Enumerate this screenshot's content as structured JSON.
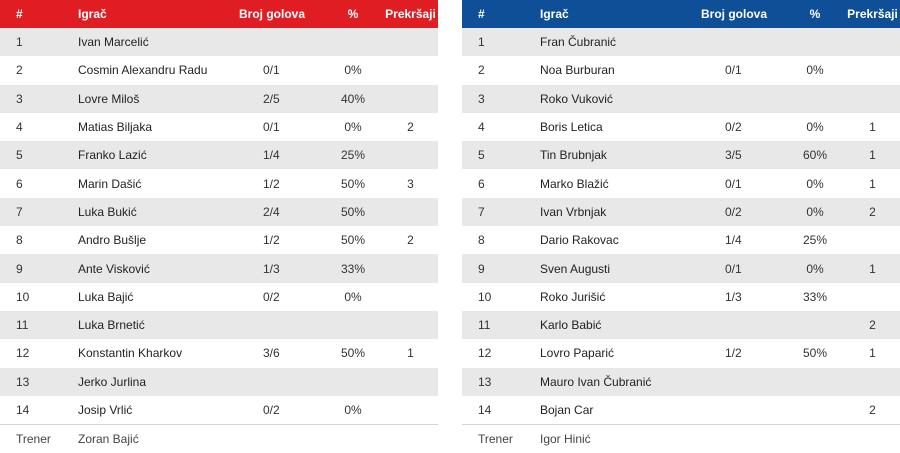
{
  "tables": [
    {
      "headers": {
        "num": "#",
        "player": "Igrač",
        "goals": "Broj golova",
        "pct": "%",
        "fouls": "Prekršaji"
      },
      "accent": "#e11d24",
      "rows": [
        {
          "num": "1",
          "player": "Ivan Marcelić",
          "goals": "",
          "pct": "",
          "fouls": ""
        },
        {
          "num": "2",
          "player": "Cosmin Alexandru Radu",
          "goals": "0/1",
          "pct": "0%",
          "fouls": ""
        },
        {
          "num": "3",
          "player": "Lovre Miloš",
          "goals": "2/5",
          "pct": "40%",
          "fouls": ""
        },
        {
          "num": "4",
          "player": "Matias Biljaka",
          "goals": "0/1",
          "pct": "0%",
          "fouls": "2"
        },
        {
          "num": "5",
          "player": "Franko Lazić",
          "goals": "1/4",
          "pct": "25%",
          "fouls": ""
        },
        {
          "num": "6",
          "player": "Marin Dašić",
          "goals": "1/2",
          "pct": "50%",
          "fouls": "3"
        },
        {
          "num": "7",
          "player": "Luka Bukić",
          "goals": "2/4",
          "pct": "50%",
          "fouls": ""
        },
        {
          "num": "8",
          "player": "Andro Bušlje",
          "goals": "1/2",
          "pct": "50%",
          "fouls": "2"
        },
        {
          "num": "9",
          "player": "Ante Visković",
          "goals": "1/3",
          "pct": "33%",
          "fouls": ""
        },
        {
          "num": "10",
          "player": "Luka Bajić",
          "goals": "0/2",
          "pct": "0%",
          "fouls": ""
        },
        {
          "num": "11",
          "player": "Luka Brnetić",
          "goals": "",
          "pct": "",
          "fouls": ""
        },
        {
          "num": "12",
          "player": "Konstantin Kharkov",
          "goals": "3/6",
          "pct": "50%",
          "fouls": "1"
        },
        {
          "num": "13",
          "player": "Jerko Jurlina",
          "goals": "",
          "pct": "",
          "fouls": ""
        },
        {
          "num": "14",
          "player": "Josip Vrlić",
          "goals": "0/2",
          "pct": "0%",
          "fouls": ""
        }
      ],
      "coach": {
        "label": "Trener",
        "name": "Zoran Bajić"
      }
    },
    {
      "headers": {
        "num": "#",
        "player": "Igrač",
        "goals": "Broj golova",
        "pct": "%",
        "fouls": "Prekršaji"
      },
      "accent": "#0e4f98",
      "rows": [
        {
          "num": "1",
          "player": "Fran Čubranić",
          "goals": "",
          "pct": "",
          "fouls": ""
        },
        {
          "num": "2",
          "player": "Noa Burburan",
          "goals": "0/1",
          "pct": "0%",
          "fouls": ""
        },
        {
          "num": "3",
          "player": "Roko Vuković",
          "goals": "",
          "pct": "",
          "fouls": ""
        },
        {
          "num": "4",
          "player": "Boris Letica",
          "goals": "0/2",
          "pct": "0%",
          "fouls": "1"
        },
        {
          "num": "5",
          "player": "Tin Brubnjak",
          "goals": "3/5",
          "pct": "60%",
          "fouls": "1"
        },
        {
          "num": "6",
          "player": "Marko Blažić",
          "goals": "0/1",
          "pct": "0%",
          "fouls": "1"
        },
        {
          "num": "7",
          "player": "Ivan Vrbnjak",
          "goals": "0/2",
          "pct": "0%",
          "fouls": "2"
        },
        {
          "num": "8",
          "player": "Dario Rakovac",
          "goals": "1/4",
          "pct": "25%",
          "fouls": ""
        },
        {
          "num": "9",
          "player": "Sven Augusti",
          "goals": "0/1",
          "pct": "0%",
          "fouls": "1"
        },
        {
          "num": "10",
          "player": "Roko Jurišić",
          "goals": "1/3",
          "pct": "33%",
          "fouls": ""
        },
        {
          "num": "11",
          "player": "Karlo Babić",
          "goals": "",
          "pct": "",
          "fouls": "2"
        },
        {
          "num": "12",
          "player": "Lovro Paparić",
          "goals": "1/2",
          "pct": "50%",
          "fouls": "1"
        },
        {
          "num": "13",
          "player": "Mauro Ivan Čubranić",
          "goals": "",
          "pct": "",
          "fouls": ""
        },
        {
          "num": "14",
          "player": "Bojan Car",
          "goals": "",
          "pct": "",
          "fouls": "2"
        }
      ],
      "coach": {
        "label": "Trener",
        "name": "Igor Hinić"
      }
    }
  ]
}
